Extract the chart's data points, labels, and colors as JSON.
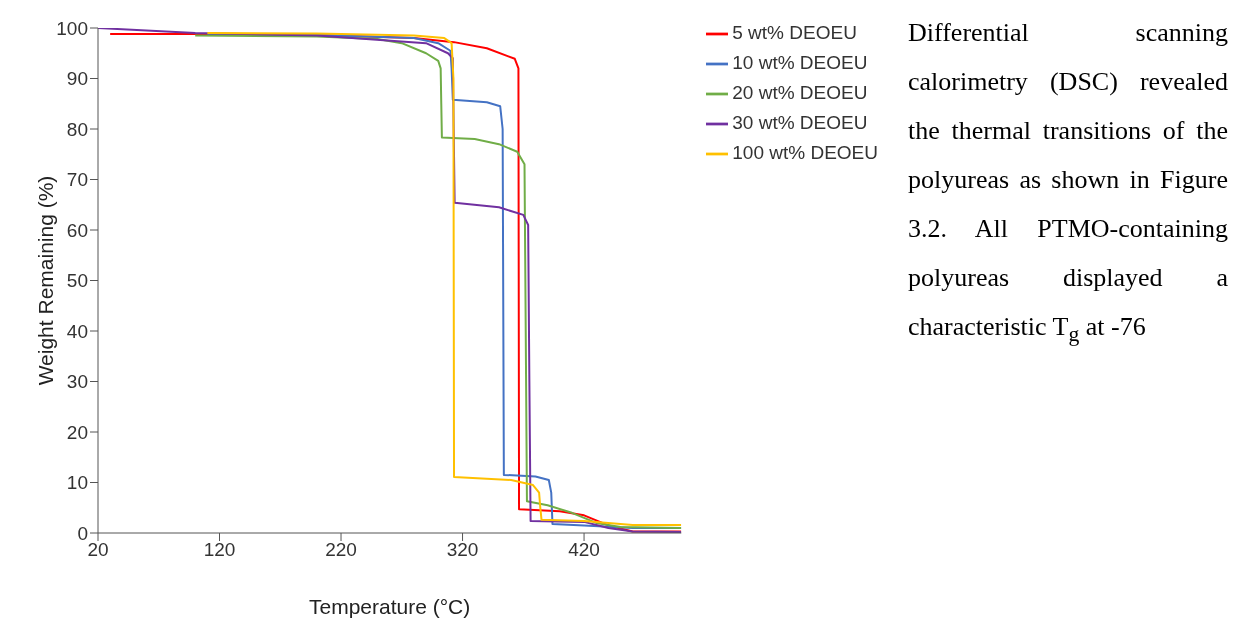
{
  "chart_data": {
    "type": "line",
    "xlabel": "Temperature (°C)",
    "ylabel": "Weight Remaining (%)",
    "xlim": [
      20,
      500
    ],
    "xticks": [
      20,
      120,
      220,
      320,
      420
    ],
    "ylim": [
      0,
      100
    ],
    "yticks": [
      0,
      10,
      20,
      30,
      40,
      50,
      60,
      70,
      80,
      90,
      100
    ],
    "grid": false,
    "legend": "top right",
    "marker": "none",
    "line_style": "solid",
    "annotations": [
      "Differential scanning calorimetry (DSC) revealed the thermal transitions of the polyureas as shown in Figure 3.2. All PTMO-containing polyureas displayed a characteristic T$_{g}$ at -76"
    ],
    "series": [
      {
        "name": "5 wt% DEOEU",
        "color": "#ff0000",
        "x": [
          30,
          100,
          200,
          280,
          313,
          340,
          363,
          366,
          366.5,
          400,
          420,
          440,
          460,
          500
        ],
        "values": [
          98.8,
          98.8,
          98.6,
          98,
          97.2,
          96,
          93.9,
          92,
          4.7,
          4.3,
          3.5,
          1.5,
          0.3,
          0.3
        ]
      },
      {
        "name": "10 wt% DEOEU",
        "color": "#4472c4",
        "x": [
          110,
          200,
          280,
          300,
          310,
          311,
          312,
          340,
          351,
          353,
          354,
          380,
          391,
          393,
          394,
          420,
          460,
          500
        ],
        "values": [
          98.8,
          98.6,
          98,
          97,
          95.5,
          92,
          85.8,
          85.3,
          84.5,
          80,
          11.5,
          11.2,
          10.5,
          8,
          1.8,
          1.5,
          1.0,
          1.0
        ]
      },
      {
        "name": "20 wt% DEOEU",
        "color": "#70ad47",
        "x": [
          100,
          200,
          250,
          270,
          290,
          300,
          302,
          302.5,
          303,
          330,
          350,
          365,
          371,
          372,
          373,
          390,
          410,
          430,
          450,
          500
        ],
        "values": [
          98.5,
          98.3,
          97.8,
          97,
          95,
          93.5,
          92,
          85,
          78.3,
          78,
          77,
          75.5,
          73,
          40,
          6.3,
          5.5,
          4,
          2,
          1.2,
          1.0
        ]
      },
      {
        "name": "30 wt% DEOEU",
        "color": "#7030a0",
        "x": [
          20,
          100,
          200,
          290,
          308,
          312,
          312.7,
          313.5,
          350,
          370,
          374,
          375,
          376,
          420,
          440,
          460,
          500
        ],
        "values": [
          100,
          99,
          98.5,
          97,
          95,
          94,
          80,
          65.4,
          64.5,
          63,
          61,
          30,
          2.4,
          2.2,
          1,
          0.3,
          0.2
        ]
      },
      {
        "name": "100 wt% DEOEU",
        "color": "#ffc000",
        "x": [
          110,
          200,
          280,
          305,
          311,
          312.5,
          313,
          360,
          378,
          383,
          384,
          385,
          420,
          440,
          460,
          500
        ],
        "values": [
          99,
          98.9,
          98.5,
          98,
          97,
          90,
          11.1,
          10.5,
          9.5,
          8,
          5,
          2.6,
          2.4,
          2,
          1.6,
          1.6
        ]
      }
    ]
  }
}
